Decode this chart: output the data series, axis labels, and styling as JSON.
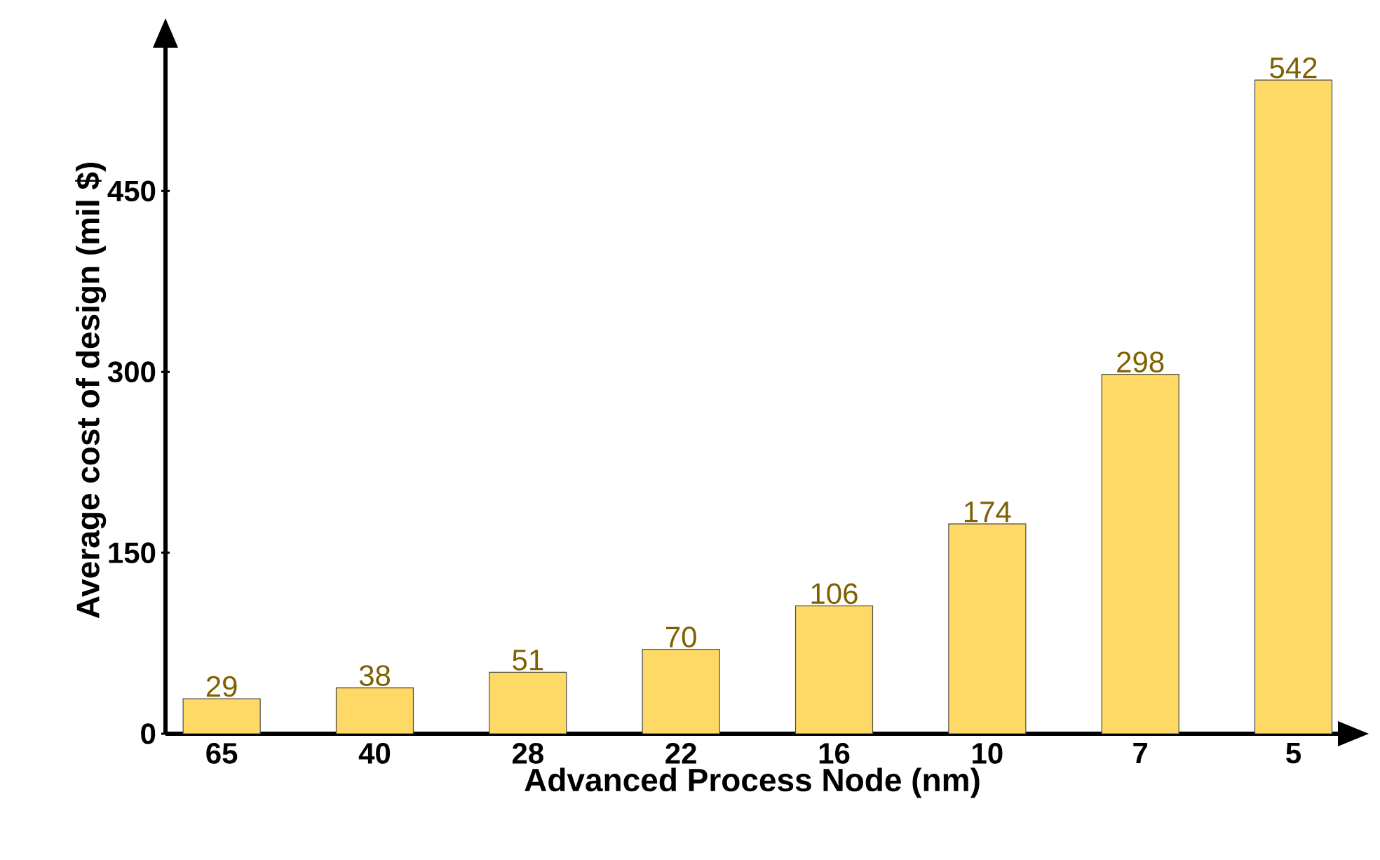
{
  "chart_data": {
    "type": "bar",
    "xlabel": "Advanced Process Node (nm)",
    "ylabel": "Average cost of design (mil $)",
    "categories": [
      "65",
      "40",
      "28",
      "22",
      "16",
      "10",
      "7",
      "5"
    ],
    "values": [
      29,
      38,
      51,
      70,
      106,
      174,
      298,
      542
    ],
    "color": "#ffd966",
    "ylim": [
      0,
      570
    ],
    "yticks": [
      0,
      150,
      300,
      450
    ],
    "data_labels": true
  }
}
